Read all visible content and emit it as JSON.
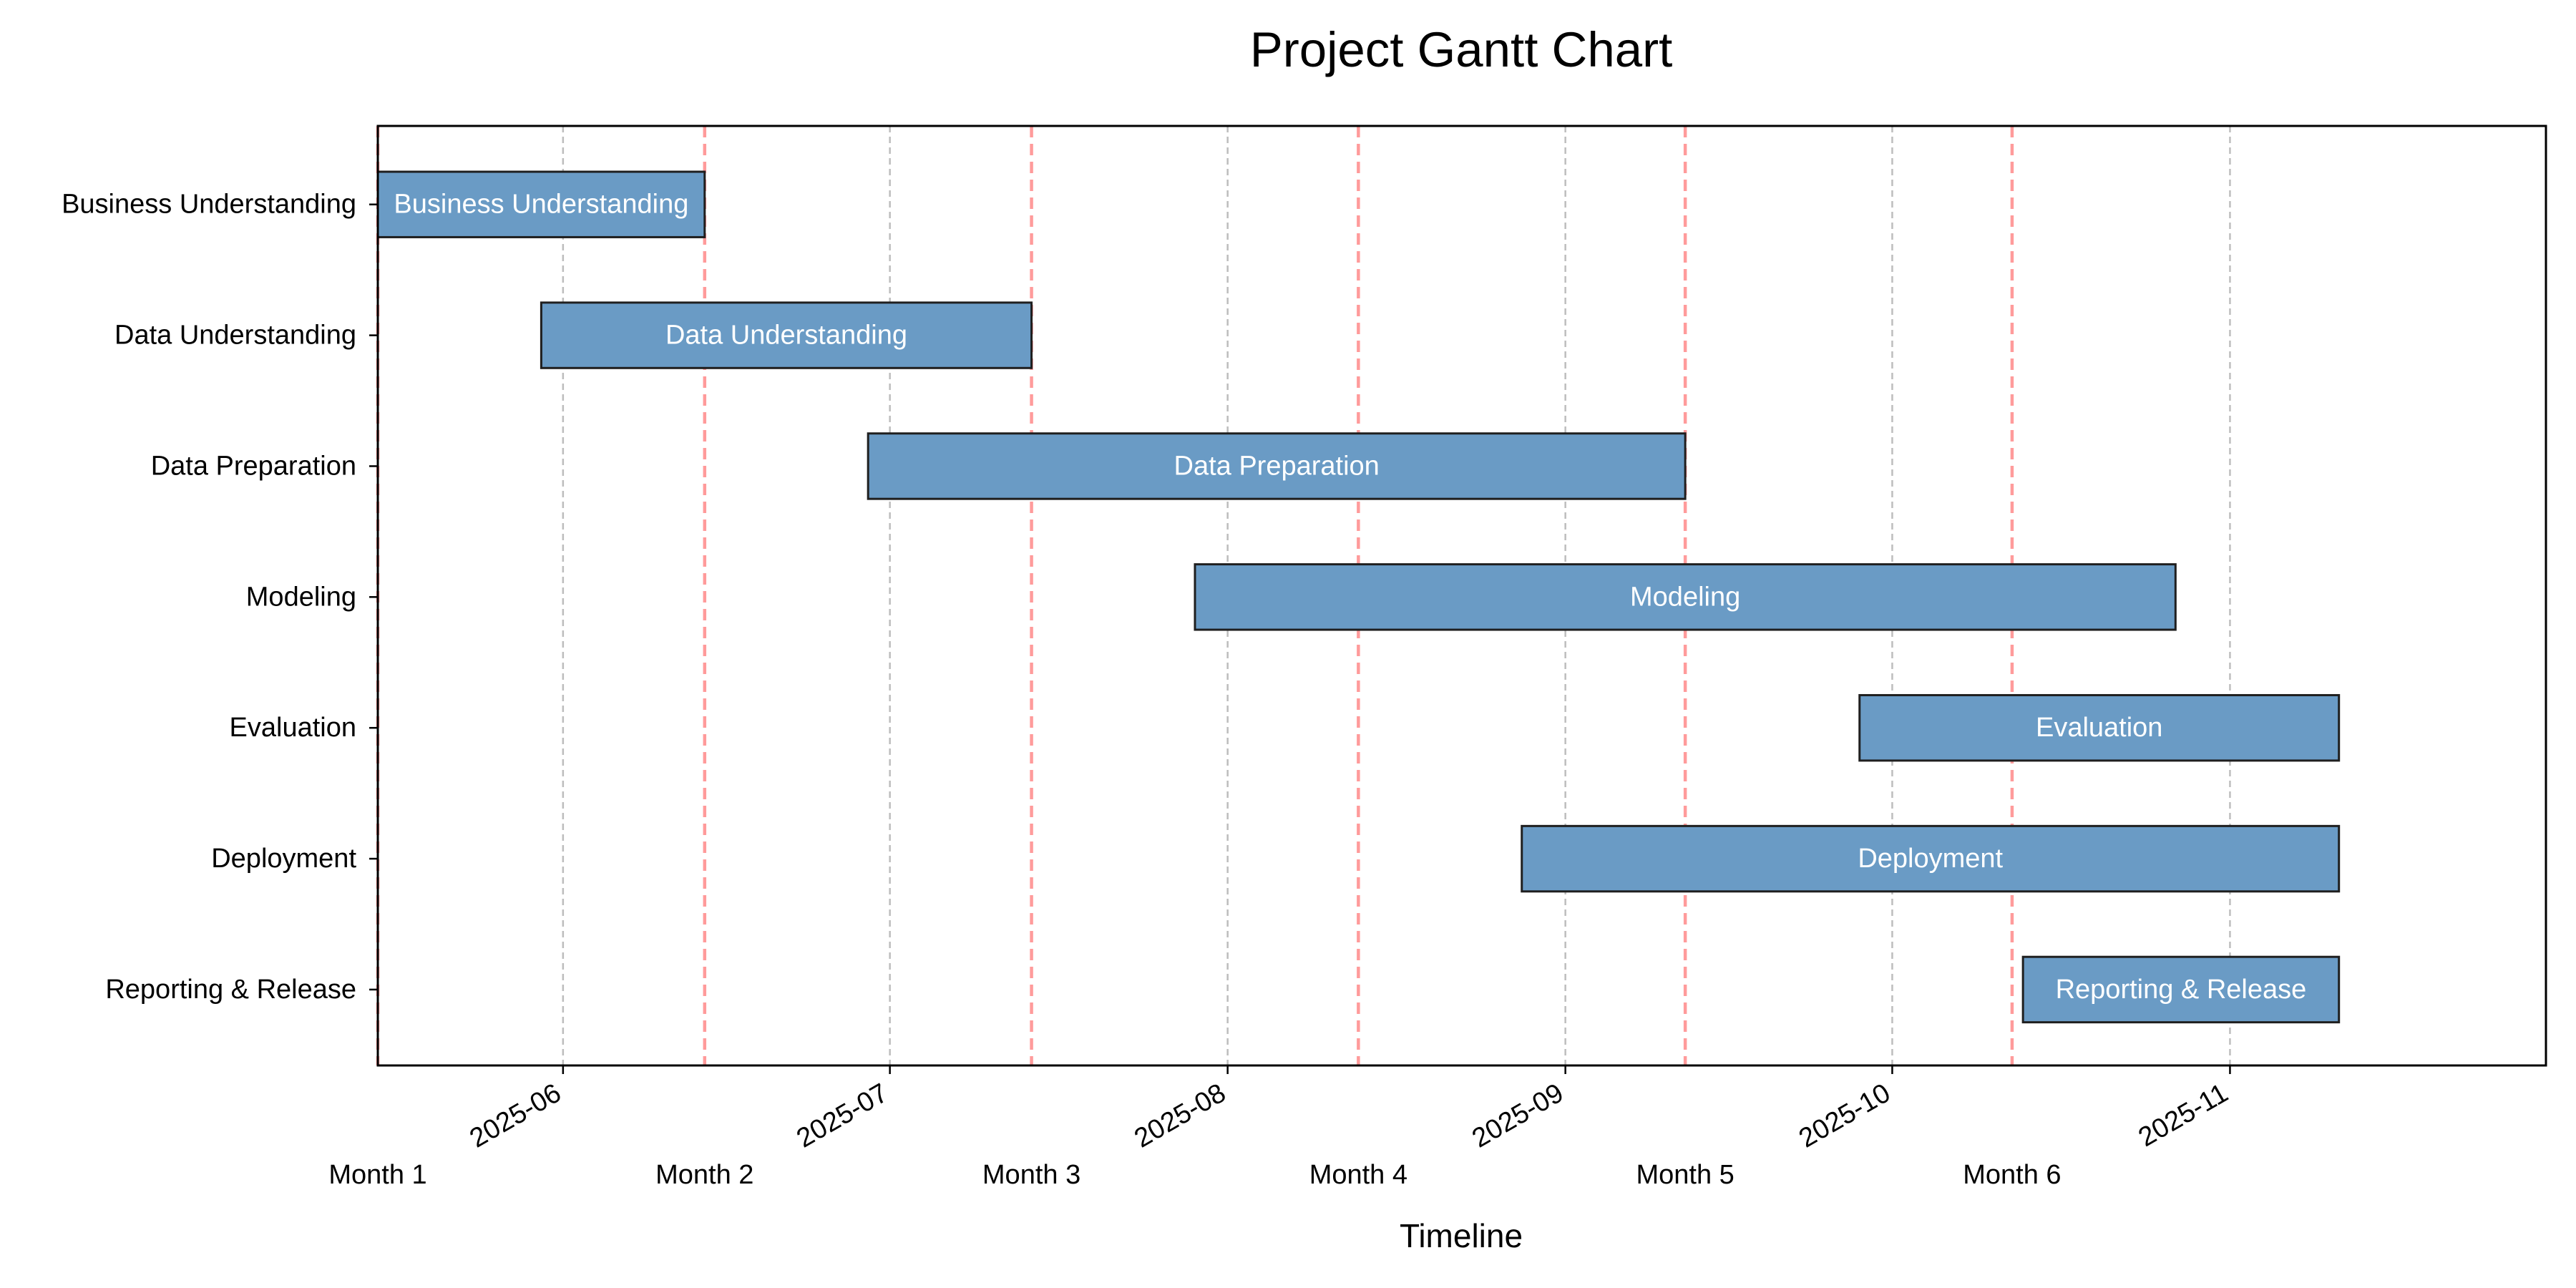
{
  "chart_data": {
    "type": "gantt",
    "title": "Project Gantt Chart",
    "xlabel": "Timeline",
    "ylabel": "",
    "x_axis": "date",
    "xlim": [
      "2025-05-15",
      "2025-11-30"
    ],
    "x_ticks": [
      "2025-06-01",
      "2025-07-01",
      "2025-08-01",
      "2025-09-01",
      "2025-10-01",
      "2025-11-01"
    ],
    "x_tick_labels": [
      "2025-06",
      "2025-07",
      "2025-08",
      "2025-09",
      "2025-10",
      "2025-11"
    ],
    "grid": "x-dashed",
    "tasks": [
      {
        "name": "Business Understanding",
        "start": "2025-05-15",
        "end": "2025-06-14"
      },
      {
        "name": "Data Understanding",
        "start": "2025-05-30",
        "end": "2025-07-14"
      },
      {
        "name": "Data Preparation",
        "start": "2025-06-29",
        "end": "2025-09-12"
      },
      {
        "name": "Modeling",
        "start": "2025-07-29",
        "end": "2025-10-27"
      },
      {
        "name": "Evaluation",
        "start": "2025-09-28",
        "end": "2025-11-11"
      },
      {
        "name": "Deployment",
        "start": "2025-08-28",
        "end": "2025-11-11"
      },
      {
        "name": "Reporting & Release",
        "start": "2025-10-13",
        "end": "2025-11-11"
      }
    ],
    "milestones": [
      {
        "label": "Month 1",
        "date": "2025-05-15"
      },
      {
        "label": "Month 2",
        "date": "2025-06-14"
      },
      {
        "label": "Month 3",
        "date": "2025-07-14"
      },
      {
        "label": "Month 4",
        "date": "2025-08-13"
      },
      {
        "label": "Month 5",
        "date": "2025-09-12"
      },
      {
        "label": "Month 6",
        "date": "2025-10-12"
      }
    ],
    "colors": {
      "bar_fill": "#6a9bc5",
      "bar_edge": "#1f1f1f",
      "milestone_line": "#ff9b9b",
      "grid_line": "#bdbdbd"
    }
  }
}
